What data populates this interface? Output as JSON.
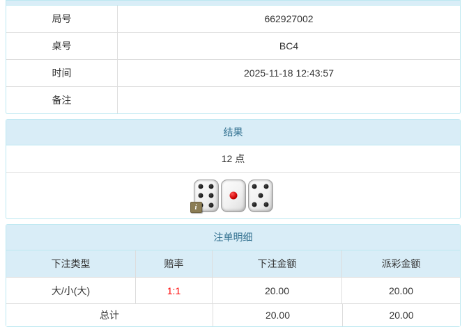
{
  "info_table": {
    "rows": [
      {
        "label": "局号",
        "value": "662927002"
      },
      {
        "label": "桌号",
        "value": "BC4"
      },
      {
        "label": "时间",
        "value": "2025-11-18 12:43:57"
      },
      {
        "label": "备注",
        "value": ""
      }
    ]
  },
  "result_panel": {
    "title": "结果",
    "points": "12 点",
    "dice": [
      6,
      1,
      5
    ],
    "info_badge": "i"
  },
  "bets_panel": {
    "title": "注单明细",
    "columns": [
      "下注类型",
      "赔率",
      "下注金额",
      "派彩金额"
    ],
    "rows": [
      {
        "bet_type": "大/小(大)",
        "odds": "1:1",
        "bet_amount": "20.00",
        "payout_amount": "20.00"
      }
    ],
    "total": {
      "label": "总计",
      "bet_amount": "20.00",
      "payout_amount": "20.00"
    }
  },
  "colors": {
    "header_bg": "#d9edf7",
    "header_text": "#31708f",
    "panel_border": "#bce8f1",
    "inner_border": "#dddddd",
    "body_text": "#333333",
    "odds_red": "#ff0000"
  }
}
